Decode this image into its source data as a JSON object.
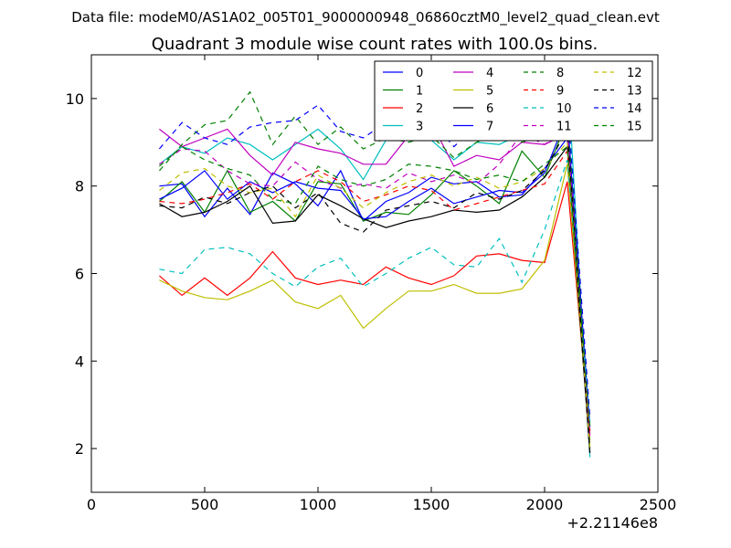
{
  "header": {
    "data_file_text": "Data file: modeM0/AS1A02_005T01_9000000948_06860cztM0_level2_quad_clean.evt"
  },
  "chart_data": {
    "type": "line",
    "title": "Quadrant 3 module wise count rates with 100.0s bins.",
    "xlabel": "",
    "ylabel": "",
    "x_offset_label": "+2.21146e8",
    "xlim": [
      0,
      2500
    ],
    "ylim": [
      1,
      11
    ],
    "x_ticks": [
      0,
      500,
      1000,
      1500,
      2000,
      2500
    ],
    "y_ticks": [
      2,
      4,
      6,
      8,
      10
    ],
    "grid": false,
    "legend_location": "upper-right",
    "x": [
      300,
      400,
      500,
      600,
      700,
      800,
      900,
      1000,
      1100,
      1200,
      1300,
      1400,
      1500,
      1600,
      1700,
      1800,
      1900,
      2000,
      2100,
      2200
    ],
    "series": [
      {
        "name": "0",
        "color": "#0000ff",
        "dash": "solid",
        "values": [
          8.0,
          8.05,
          7.3,
          7.95,
          7.35,
          8.3,
          8.05,
          7.55,
          8.35,
          7.2,
          7.65,
          7.85,
          8.2,
          8.05,
          8.1,
          7.75,
          7.8,
          8.4,
          9.1,
          2.0
        ]
      },
      {
        "name": "1",
        "color": "#008000",
        "dash": "solid",
        "values": [
          7.65,
          8.1,
          7.4,
          8.35,
          7.4,
          7.65,
          7.2,
          8.1,
          8.05,
          7.2,
          7.4,
          7.35,
          7.8,
          8.35,
          8.0,
          7.6,
          8.8,
          8.2,
          9.5,
          2.2
        ]
      },
      {
        "name": "2",
        "color": "#ff0000",
        "dash": "solid",
        "values": [
          5.95,
          5.5,
          5.9,
          5.5,
          5.9,
          6.5,
          5.9,
          5.75,
          5.85,
          5.75,
          6.15,
          5.9,
          5.75,
          5.95,
          6.4,
          6.45,
          6.3,
          6.25,
          8.1,
          2.3
        ]
      },
      {
        "name": "3",
        "color": "#00bfbf",
        "dash": "solid",
        "values": [
          8.5,
          8.9,
          8.75,
          9.1,
          8.95,
          8.6,
          8.95,
          9.3,
          8.85,
          8.15,
          9.05,
          9.2,
          9.05,
          8.6,
          9.0,
          8.95,
          9.2,
          9.1,
          10.7,
          1.8
        ]
      },
      {
        "name": "4",
        "color": "#bf00bf",
        "dash": "solid",
        "values": [
          9.3,
          8.9,
          9.1,
          9.3,
          8.7,
          8.25,
          9.0,
          8.85,
          8.75,
          8.5,
          8.5,
          9.15,
          9.45,
          8.45,
          8.7,
          8.6,
          9.0,
          8.95,
          9.2,
          2.4
        ]
      },
      {
        "name": "5",
        "color": "#bfbf00",
        "dash": "solid",
        "values": [
          5.85,
          5.6,
          5.45,
          5.4,
          5.6,
          5.85,
          5.35,
          5.2,
          5.5,
          4.75,
          5.2,
          5.6,
          5.6,
          5.75,
          5.55,
          5.55,
          5.65,
          6.3,
          8.5,
          2.1
        ]
      },
      {
        "name": "6",
        "color": "#000000",
        "dash": "solid",
        "values": [
          7.6,
          7.3,
          7.4,
          7.65,
          8.0,
          7.15,
          7.2,
          7.8,
          7.55,
          7.25,
          7.05,
          7.2,
          7.3,
          7.45,
          7.4,
          7.45,
          7.75,
          8.2,
          8.9,
          1.9
        ]
      },
      {
        "name": "7",
        "color": "#0000ff",
        "dash": "solid",
        "values": [
          7.7,
          7.95,
          8.35,
          7.7,
          8.1,
          7.85,
          8.1,
          7.95,
          7.9,
          7.25,
          7.3,
          7.65,
          7.95,
          7.6,
          7.75,
          7.9,
          7.85,
          8.3,
          9.6,
          2.5
        ]
      },
      {
        "name": "8",
        "color": "#008000",
        "dash": "dashed",
        "values": [
          8.35,
          8.95,
          9.4,
          9.5,
          10.15,
          8.95,
          9.6,
          8.95,
          9.35,
          8.85,
          9.1,
          9.0,
          9.15,
          8.65,
          9.0,
          9.2,
          9.0,
          9.2,
          9.8,
          2.3
        ]
      },
      {
        "name": "9",
        "color": "#ff0000",
        "dash": "dashed",
        "values": [
          7.65,
          7.6,
          7.7,
          7.85,
          8.05,
          7.7,
          8.1,
          8.35,
          8.1,
          7.65,
          7.8,
          8.0,
          7.9,
          7.45,
          7.6,
          7.75,
          7.9,
          8.05,
          8.8,
          2.4
        ]
      },
      {
        "name": "10",
        "color": "#00bfbf",
        "dash": "dashed",
        "values": [
          6.1,
          6.0,
          6.55,
          6.6,
          6.45,
          6.0,
          5.7,
          6.15,
          6.35,
          5.7,
          6.0,
          6.35,
          6.6,
          6.2,
          6.15,
          6.8,
          5.8,
          7.0,
          8.6,
          2.6
        ]
      },
      {
        "name": "11",
        "color": "#bf00bf",
        "dash": "dashed",
        "values": [
          8.5,
          8.85,
          8.8,
          8.35,
          8.05,
          8.0,
          8.55,
          8.15,
          7.95,
          8.05,
          7.95,
          8.3,
          8.1,
          8.25,
          8.05,
          8.5,
          9.2,
          8.95,
          9.3,
          2.2
        ]
      },
      {
        "name": "12",
        "color": "#bfbf00",
        "dash": "dashed",
        "values": [
          7.9,
          8.3,
          8.4,
          8.0,
          7.85,
          7.95,
          7.3,
          8.25,
          7.95,
          7.5,
          7.85,
          8.1,
          8.25,
          8.0,
          8.2,
          7.95,
          8.1,
          8.4,
          9.0,
          2.0
        ]
      },
      {
        "name": "13",
        "color": "#000000",
        "dash": "dashed",
        "values": [
          7.55,
          7.5,
          7.75,
          7.6,
          7.85,
          8.0,
          7.5,
          7.85,
          7.15,
          6.95,
          7.45,
          7.55,
          7.65,
          7.5,
          7.85,
          7.7,
          7.9,
          8.35,
          9.3,
          1.9
        ]
      },
      {
        "name": "14",
        "color": "#0000ff",
        "dash": "dashed",
        "values": [
          8.85,
          9.45,
          9.1,
          8.95,
          9.35,
          9.45,
          9.5,
          9.85,
          9.25,
          9.1,
          9.45,
          9.45,
          9.5,
          8.9,
          9.4,
          9.35,
          10.3,
          10.05,
          10.0,
          2.7
        ]
      },
      {
        "name": "15",
        "color": "#008000",
        "dash": "dashed",
        "values": [
          8.45,
          8.9,
          8.6,
          8.4,
          8.25,
          7.7,
          7.6,
          8.45,
          8.15,
          8.0,
          8.15,
          8.5,
          8.45,
          8.35,
          8.15,
          8.25,
          8.1,
          8.5,
          8.9,
          2.5
        ]
      }
    ]
  }
}
